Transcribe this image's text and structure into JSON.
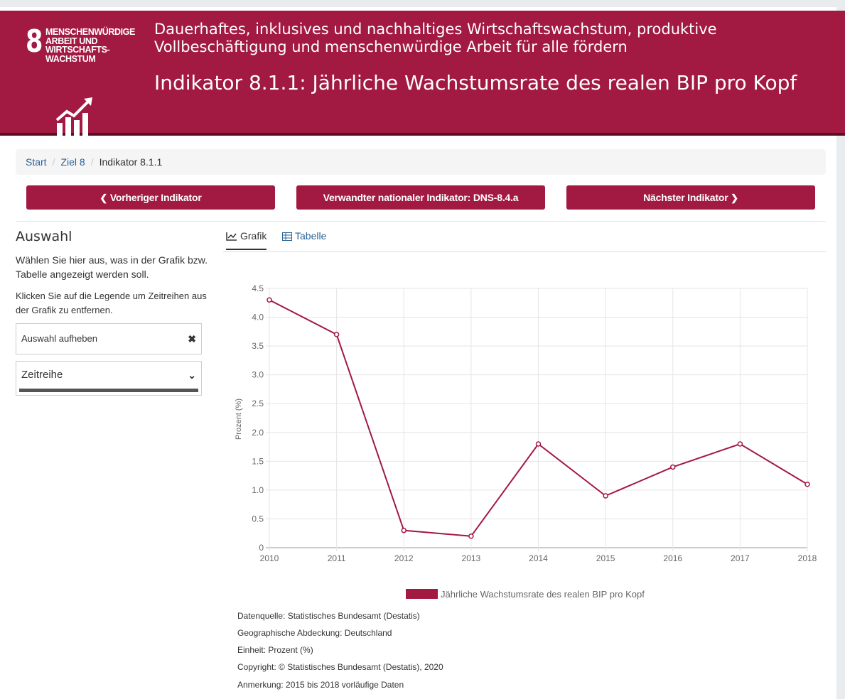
{
  "goal": {
    "number": "8",
    "title": "MENSCHENWÜRDIGE ARBEIT UND WIRTSCHAFTS-WACHSTUM",
    "icon": "growth-chart-icon",
    "description": "Dauerhaftes, inklusives und nachhaltiges Wirtschaftswachstum, produktive Vollbeschäftigung und menschenwürdige Arbeit für alle fördern"
  },
  "indicator": {
    "title": "Indikator 8.1.1: Jährliche Wachstumsrate des realen BIP pro Kopf"
  },
  "breadcrumb": {
    "start": "Start",
    "goal": "Ziel 8",
    "current": "Indikator 8.1.1"
  },
  "nav": {
    "previous": "Vorheriger Indikator",
    "related": "Verwandter nationaler Indikator: DNS-8.4.a",
    "next": "Nächster Indikator"
  },
  "sidebar": {
    "title": "Auswahl",
    "intro": "Wählen Sie hier aus, was in der Grafik bzw. Tabelle angezeigt werden soll.",
    "hint": "Klicken Sie auf die Legende um Zeitreihen aus der Grafik zu entfernen.",
    "clear_label": "Auswahl aufheben",
    "series_select": "Zeitreihe"
  },
  "tabs": {
    "chart": "Grafik",
    "table": "Tabelle"
  },
  "colors": {
    "brand": "#a21942",
    "brand_dark": "#5a0f22",
    "link": "#2a6496"
  },
  "chart_data": {
    "type": "line",
    "x": [
      "2010",
      "2011",
      "2012",
      "2013",
      "2014",
      "2015",
      "2016",
      "2017",
      "2018"
    ],
    "series": [
      {
        "name": "Jährliche Wachstumsrate des realen BIP pro Kopf",
        "values": [
          4.3,
          3.7,
          0.3,
          0.2,
          1.8,
          0.9,
          1.4,
          1.8,
          1.1
        ],
        "color": "#a21942"
      }
    ],
    "yticks": [
      "0",
      "0.5",
      "1.0",
      "1.5",
      "2.0",
      "2.5",
      "3.0",
      "3.5",
      "4.0",
      "4.5"
    ],
    "ylabel": "Prozent (%)",
    "ylim": [
      0,
      4.5
    ],
    "grid": true,
    "legend": "bottom"
  },
  "footer": {
    "source": "Datenquelle: Statistisches Bundesamt (Destatis)",
    "coverage": "Geographische Abdeckung: Deutschland",
    "unit": "Einheit: Prozent (%)",
    "copyright": "Copyright: © Statistisches Bundesamt (Destatis), 2020",
    "note": "Anmerkung: 2015 bis 2018 vorläufige Daten"
  }
}
